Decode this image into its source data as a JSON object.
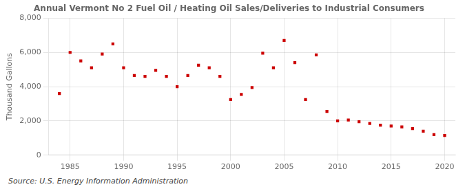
{
  "chart_data": {
    "type": "scatter",
    "title": "Annual Vermont No 2 Fuel Oil / Heating Oil Sales/Deliveries to Industrial Consumers",
    "ylabel": "Thousand Gallons",
    "source": "Source: U.S. Energy Information Administration",
    "x": [
      1984,
      1985,
      1986,
      1987,
      1988,
      1989,
      1990,
      1991,
      1992,
      1993,
      1994,
      1995,
      1996,
      1997,
      1998,
      1999,
      2000,
      2001,
      2002,
      2003,
      2004,
      2005,
      2006,
      2007,
      2008,
      2009,
      2010,
      2011,
      2012,
      2013,
      2014,
      2015,
      2016,
      2017,
      2018,
      2019,
      2020
    ],
    "values": [
      3600,
      6000,
      5500,
      5100,
      5900,
      6500,
      5100,
      4650,
      4600,
      4950,
      4600,
      4000,
      4650,
      5250,
      5100,
      4600,
      3250,
      3550,
      3950,
      5950,
      5100,
      6700,
      5400,
      3250,
      5850,
      2550,
      2000,
      2050,
      1950,
      1850,
      1750,
      1700,
      1650,
      1550,
      1400,
      1200,
      1150
    ],
    "color": "#cc0000",
    "marker": "square",
    "xlim": [
      1983,
      2021
    ],
    "xticks": [
      1985,
      1990,
      1995,
      2000,
      2005,
      2010,
      2015,
      2020
    ],
    "ylim": [
      0,
      8000
    ],
    "yticks": [
      0,
      {
        "value": 2000,
        "label": "2,000"
      },
      {
        "value": 4000,
        "label": "4,000"
      },
      {
        "value": 6000,
        "label": "6,000"
      },
      {
        "value": 8000,
        "label": "8,000"
      }
    ],
    "grid": true
  }
}
